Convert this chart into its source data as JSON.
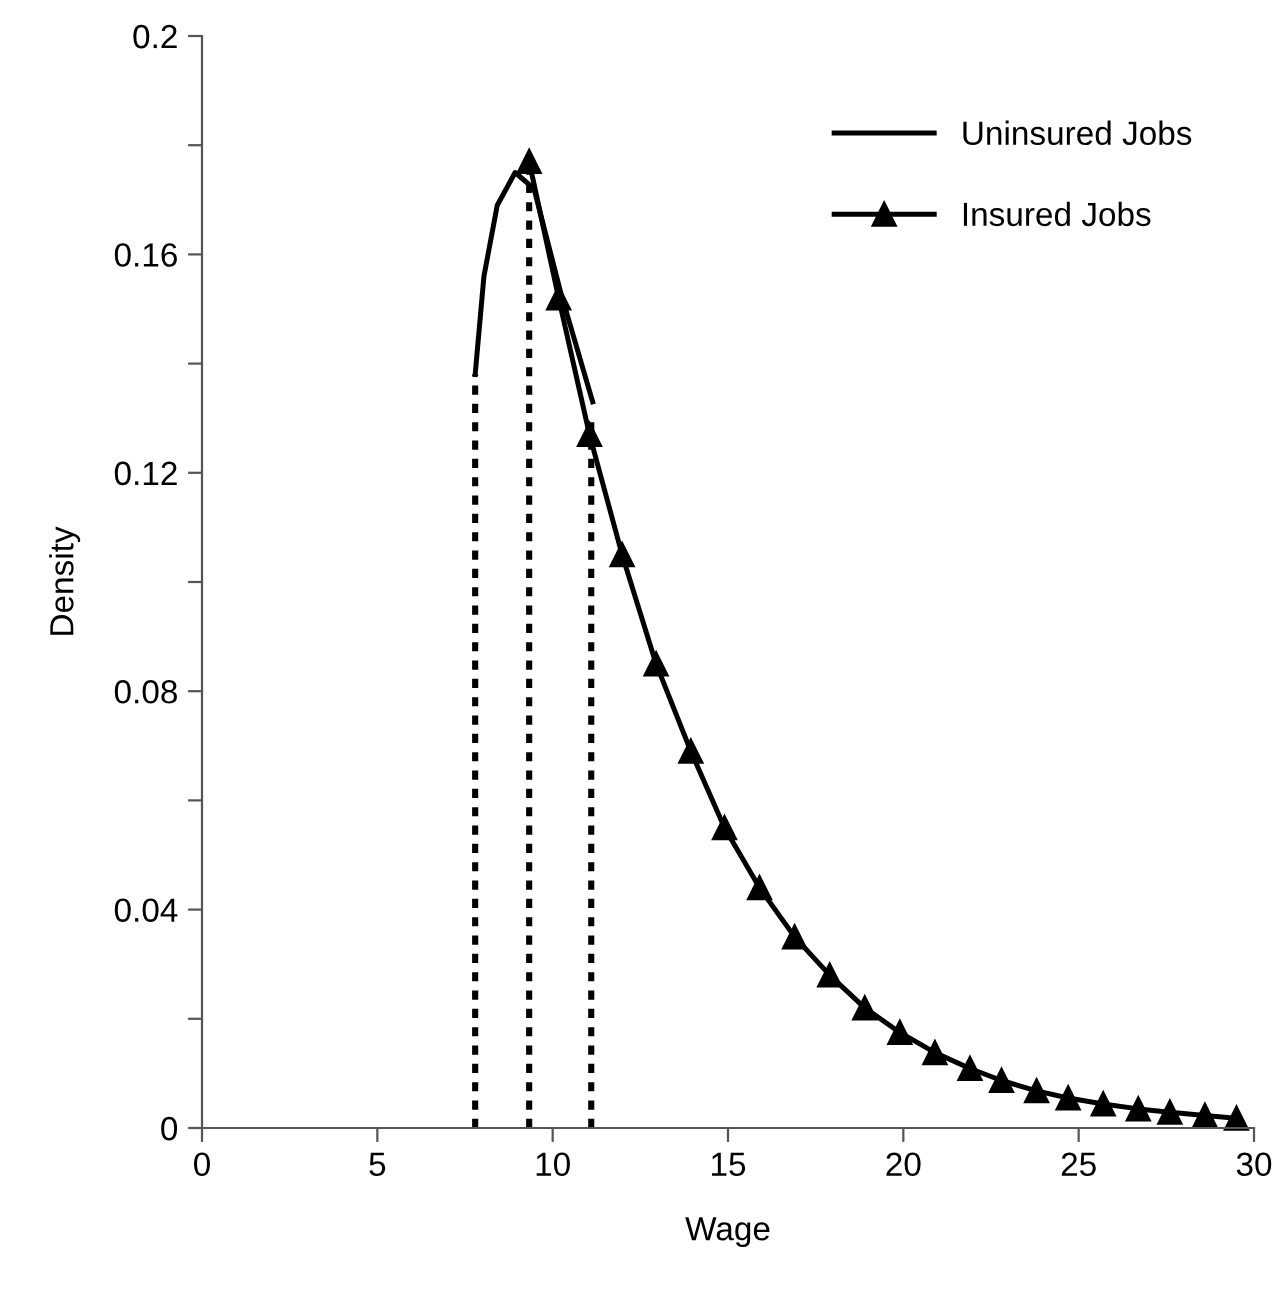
{
  "chart_data": {
    "type": "line",
    "xlabel": "Wage",
    "ylabel": "Density",
    "xlim": [
      0,
      30
    ],
    "xticks": [
      0,
      5,
      10,
      15,
      20,
      25,
      30
    ],
    "ylim": [
      0,
      0.2
    ],
    "yticks": [
      0,
      {
        "value": 0.02,
        "label": null
      },
      0.04,
      {
        "value": 0.06,
        "label": null
      },
      0.08,
      {
        "value": 0.1,
        "label": null
      },
      0.12,
      {
        "value": 0.14,
        "label": null
      },
      0.16,
      {
        "value": 0.18,
        "label": null
      },
      0.2
    ],
    "grid": false,
    "legend": "top right",
    "series": [
      {
        "name": "Uninsured Jobs",
        "color": "#000000",
        "marker": "none",
        "line_style": "solid",
        "x": [
          7.79,
          8.04,
          8.42,
          8.93,
          9.47,
          10.23,
          11.14
        ],
        "values": [
          0.138,
          0.156,
          0.169,
          0.175,
          0.172,
          0.153,
          0.133
        ]
      },
      {
        "name": "Insured Jobs",
        "color": "#000000",
        "marker": "triangle",
        "line_style": "solid",
        "x": [
          9.33,
          10.17,
          11.05,
          11.98,
          12.95,
          13.94,
          14.9,
          15.9,
          16.9,
          17.9,
          18.9,
          19.9,
          20.9,
          21.9,
          22.8,
          23.8,
          24.7,
          25.7,
          26.7,
          27.6,
          28.6,
          29.5
        ],
        "values": [
          0.177,
          0.152,
          0.127,
          0.105,
          0.085,
          0.069,
          0.055,
          0.044,
          0.035,
          0.028,
          0.022,
          0.0175,
          0.0138,
          0.0109,
          0.0087,
          0.0068,
          0.0055,
          0.0044,
          0.0035,
          0.0029,
          0.0023,
          0.0018
        ]
      },
      {
        "color": "#000000",
        "marker": "none",
        "line_style": "dotted",
        "x": [
          7.79,
          7.79
        ],
        "values": [
          0,
          0.138
        ]
      },
      {
        "color": "#000000",
        "marker": "none",
        "line_style": "dotted",
        "x": [
          9.33,
          9.33
        ],
        "values": [
          0,
          0.177
        ]
      },
      {
        "color": "#000000",
        "marker": "none",
        "line_style": "dotted",
        "x": [
          11.1,
          11.1
        ],
        "values": [
          0,
          0.13
        ]
      }
    ]
  }
}
